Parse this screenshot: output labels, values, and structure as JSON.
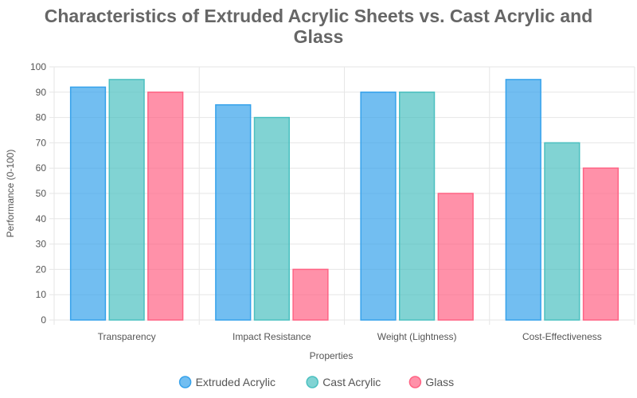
{
  "chart_data": {
    "type": "bar",
    "title_lines": [
      "Characteristics of Extruded Acrylic Sheets vs. Cast Acrylic and",
      "Glass"
    ],
    "xlabel": "Properties",
    "ylabel": "Performance (0-100)",
    "ylim": [
      0,
      100
    ],
    "ytick_step": 10,
    "grid": true,
    "legend_position": "bottom",
    "categories": [
      "Transparency",
      "Impact Resistance",
      "Weight (Lightness)",
      "Cost-Effectiveness"
    ],
    "series": [
      {
        "name": "Extruded Acrylic",
        "values": [
          92,
          85,
          90,
          95
        ],
        "color": "#36a2eb"
      },
      {
        "name": "Cast Acrylic",
        "values": [
          95,
          80,
          90,
          70
        ],
        "color": "#4bc0c0"
      },
      {
        "name": "Glass",
        "values": [
          90,
          20,
          50,
          60
        ],
        "color": "#ff6384"
      }
    ]
  }
}
